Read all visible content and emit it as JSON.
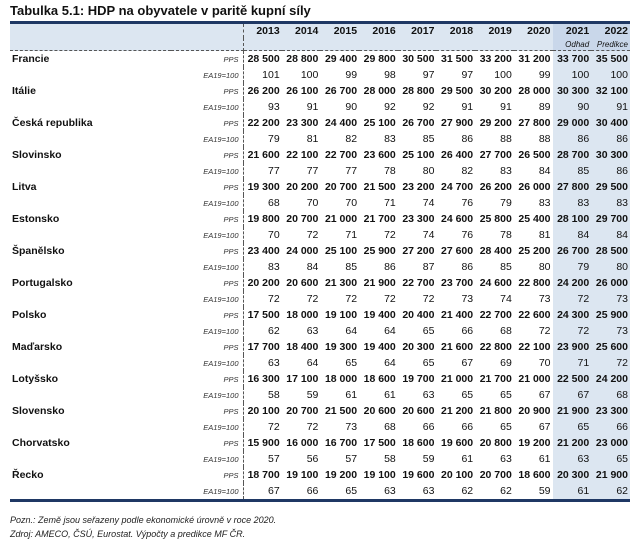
{
  "title": "Tabulka 5.1: HDP na obyvatele v paritě kupní síly",
  "years": [
    "2013",
    "2014",
    "2015",
    "2016",
    "2017",
    "2018",
    "2019",
    "2020",
    "2021",
    "2022"
  ],
  "year_notes": [
    "",
    "",
    "",
    "",
    "",
    "",
    "",
    "",
    "Odhad",
    "Predikce"
  ],
  "unit_pps": "PPS",
  "unit_ea": "EA19=100",
  "highlight_color": "#dce6f1",
  "rows": [
    {
      "country": "Francie",
      "pps": [
        "28 500",
        "28 800",
        "29 400",
        "29 800",
        "30 500",
        "31 500",
        "33 200",
        "31 200",
        "33 700",
        "35 500"
      ],
      "ea": [
        "101",
        "100",
        "99",
        "98",
        "97",
        "97",
        "100",
        "99",
        "100",
        "100"
      ]
    },
    {
      "country": "Itálie",
      "pps": [
        "26 200",
        "26 100",
        "26 700",
        "28 000",
        "28 800",
        "29 500",
        "30 200",
        "28 000",
        "30 300",
        "32 100"
      ],
      "ea": [
        "93",
        "91",
        "90",
        "92",
        "92",
        "91",
        "91",
        "89",
        "90",
        "91"
      ]
    },
    {
      "country": "Česká republika",
      "pps": [
        "22 200",
        "23 300",
        "24 400",
        "25 100",
        "26 700",
        "27 900",
        "29 200",
        "27 800",
        "29 000",
        "30 400"
      ],
      "ea": [
        "79",
        "81",
        "82",
        "83",
        "85",
        "86",
        "88",
        "88",
        "86",
        "86"
      ]
    },
    {
      "country": "Slovinsko",
      "pps": [
        "21 600",
        "22 100",
        "22 700",
        "23 600",
        "25 100",
        "26 400",
        "27 700",
        "26 500",
        "28 700",
        "30 300"
      ],
      "ea": [
        "77",
        "77",
        "77",
        "78",
        "80",
        "82",
        "83",
        "84",
        "85",
        "86"
      ]
    },
    {
      "country": "Litva",
      "pps": [
        "19 300",
        "20 200",
        "20 700",
        "21 500",
        "23 200",
        "24 700",
        "26 200",
        "26 000",
        "27 800",
        "29 500"
      ],
      "ea": [
        "68",
        "70",
        "70",
        "71",
        "74",
        "76",
        "79",
        "83",
        "83",
        "83"
      ]
    },
    {
      "country": "Estonsko",
      "pps": [
        "19 800",
        "20 700",
        "21 000",
        "21 700",
        "23 300",
        "24 600",
        "25 800",
        "25 400",
        "28 100",
        "29 700"
      ],
      "ea": [
        "70",
        "72",
        "71",
        "72",
        "74",
        "76",
        "78",
        "81",
        "84",
        "84"
      ]
    },
    {
      "country": "Španělsko",
      "pps": [
        "23 400",
        "24 000",
        "25 100",
        "25 900",
        "27 200",
        "27 600",
        "28 400",
        "25 200",
        "26 700",
        "28 500"
      ],
      "ea": [
        "83",
        "84",
        "85",
        "86",
        "87",
        "86",
        "85",
        "80",
        "79",
        "80"
      ]
    },
    {
      "country": "Portugalsko",
      "pps": [
        "20 200",
        "20 600",
        "21 300",
        "21 900",
        "22 700",
        "23 700",
        "24 600",
        "22 800",
        "24 200",
        "26 000"
      ],
      "ea": [
        "72",
        "72",
        "72",
        "72",
        "72",
        "73",
        "74",
        "73",
        "72",
        "73"
      ]
    },
    {
      "country": "Polsko",
      "pps": [
        "17 500",
        "18 000",
        "19 100",
        "19 400",
        "20 400",
        "21 400",
        "22 700",
        "22 600",
        "24 300",
        "25 900"
      ],
      "ea": [
        "62",
        "63",
        "64",
        "64",
        "65",
        "66",
        "68",
        "72",
        "72",
        "73"
      ]
    },
    {
      "country": "Maďarsko",
      "pps": [
        "17 700",
        "18 400",
        "19 300",
        "19 400",
        "20 300",
        "21 600",
        "22 800",
        "22 100",
        "23 900",
        "25 600"
      ],
      "ea": [
        "63",
        "64",
        "65",
        "64",
        "65",
        "67",
        "69",
        "70",
        "71",
        "72"
      ]
    },
    {
      "country": "Lotyšsko",
      "pps": [
        "16 300",
        "17 100",
        "18 000",
        "18 600",
        "19 700",
        "21 000",
        "21 700",
        "21 000",
        "22 500",
        "24 200"
      ],
      "ea": [
        "58",
        "59",
        "61",
        "61",
        "63",
        "65",
        "65",
        "67",
        "67",
        "68"
      ]
    },
    {
      "country": "Slovensko",
      "pps": [
        "20 100",
        "20 700",
        "21 500",
        "20 600",
        "20 600",
        "21 200",
        "21 800",
        "20 900",
        "21 900",
        "23 300"
      ],
      "ea": [
        "72",
        "72",
        "73",
        "68",
        "66",
        "66",
        "65",
        "67",
        "65",
        "66"
      ]
    },
    {
      "country": "Chorvatsko",
      "pps": [
        "15 900",
        "16 000",
        "16 700",
        "17 500",
        "18 600",
        "19 600",
        "20 800",
        "19 200",
        "21 200",
        "23 000"
      ],
      "ea": [
        "57",
        "56",
        "57",
        "58",
        "59",
        "61",
        "63",
        "61",
        "63",
        "65"
      ]
    },
    {
      "country": "Řecko",
      "pps": [
        "18 700",
        "19 100",
        "19 200",
        "19 100",
        "19 600",
        "20 100",
        "20 700",
        "18 600",
        "20 300",
        "21 900"
      ],
      "ea": [
        "67",
        "66",
        "65",
        "63",
        "63",
        "62",
        "62",
        "59",
        "61",
        "62"
      ]
    }
  ],
  "notes": {
    "note": "Pozn.: Země jsou seřazeny podle ekonomické úrovně v roce 2020.",
    "source": "Zdroj: AMECO, ČSÚ, Eurostat. Výpočty a predikce MF ČR."
  }
}
